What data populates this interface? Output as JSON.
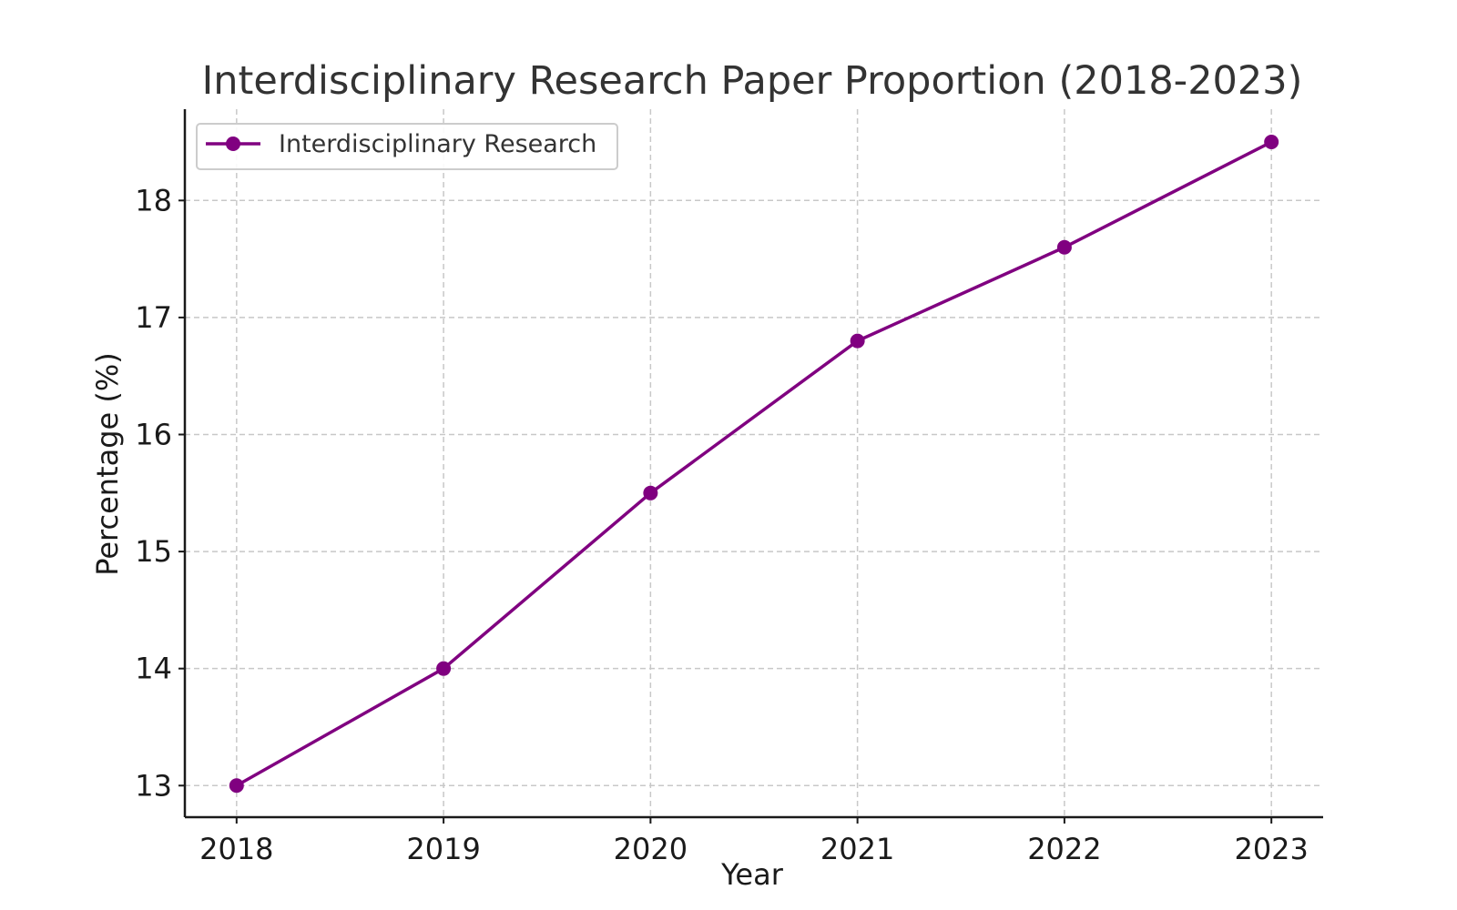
{
  "chart_data": {
    "type": "line",
    "title": "Interdisciplinary Research Paper Proportion (2018-2023)",
    "xlabel": "Year",
    "ylabel": "Percentage (%)",
    "x": [
      2018,
      2019,
      2020,
      2021,
      2022,
      2023
    ],
    "x_tick_labels": [
      "2018",
      "2019",
      "2020",
      "2021",
      "2022",
      "2023"
    ],
    "y_ticks": [
      13,
      14,
      15,
      16,
      17,
      18
    ],
    "y_tick_labels": [
      "13",
      "14",
      "15",
      "16",
      "17",
      "18"
    ],
    "xlim": [
      2017.75,
      2023.25
    ],
    "ylim": [
      12.73,
      18.78
    ],
    "grid": true,
    "legend_position": "top-left",
    "series": [
      {
        "name": "Interdisciplinary Research",
        "values": [
          13.0,
          14.0,
          15.5,
          16.8,
          17.6,
          18.5
        ],
        "color": "#800080",
        "marker": "circle"
      }
    ]
  }
}
